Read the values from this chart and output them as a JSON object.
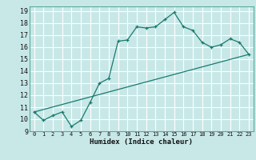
{
  "xlabel": "Humidex (Indice chaleur)",
  "bg_color": "#c8e8e8",
  "grid_color": "#ffffff",
  "line_color": "#1a7a6e",
  "xlim": [
    -0.5,
    23.5
  ],
  "ylim": [
    9,
    19.4
  ],
  "xticks": [
    0,
    1,
    2,
    3,
    4,
    5,
    6,
    7,
    8,
    9,
    10,
    11,
    12,
    13,
    14,
    15,
    16,
    17,
    18,
    19,
    20,
    21,
    22,
    23
  ],
  "yticks": [
    9,
    10,
    11,
    12,
    13,
    14,
    15,
    16,
    17,
    18,
    19
  ],
  "series1_x": [
    0,
    1,
    2,
    3,
    4,
    5,
    6,
    7,
    8,
    9,
    10,
    11,
    12,
    13,
    14,
    15,
    16,
    17,
    18,
    19,
    20,
    21,
    22,
    23
  ],
  "series1_y": [
    10.6,
    9.9,
    10.3,
    10.6,
    9.4,
    9.9,
    11.4,
    13.0,
    13.4,
    16.5,
    16.6,
    17.7,
    17.6,
    17.7,
    18.3,
    18.9,
    17.7,
    17.4,
    16.4,
    16.0,
    16.2,
    16.7,
    16.4,
    15.4
  ],
  "series2_x": [
    0,
    23
  ],
  "series2_y": [
    10.6,
    15.4
  ]
}
